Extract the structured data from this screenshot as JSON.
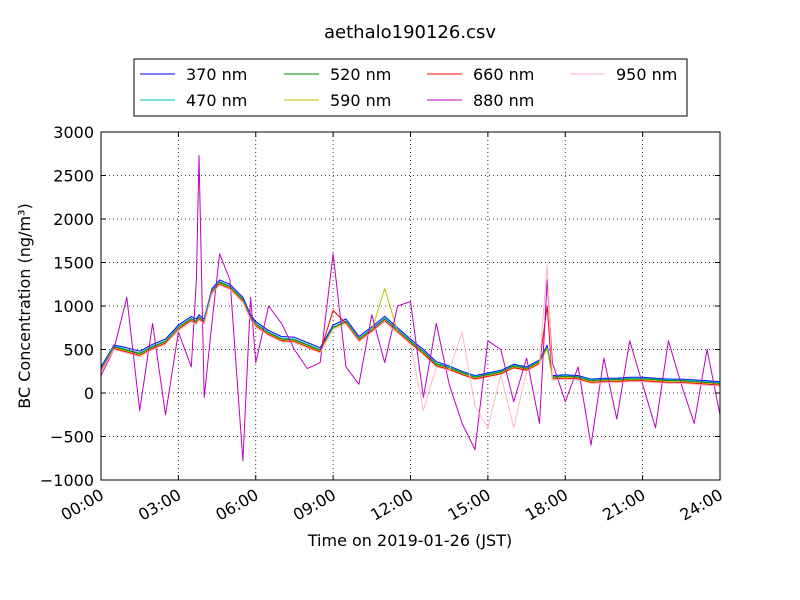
{
  "chart_data": {
    "type": "line",
    "title": "aethalo190126.csv",
    "xlabel": "Time on 2019-01-26 (JST)",
    "ylabel": "BC Concentration (ng/m³)",
    "xlim": [
      0,
      24
    ],
    "ylim": [
      -1000,
      3000
    ],
    "grid": true,
    "legend_position": "top",
    "x_ticks": [
      {
        "value": 0,
        "label": "00:00"
      },
      {
        "value": 3,
        "label": "03:00"
      },
      {
        "value": 6,
        "label": "06:00"
      },
      {
        "value": 9,
        "label": "09:00"
      },
      {
        "value": 12,
        "label": "12:00"
      },
      {
        "value": 15,
        "label": "15:00"
      },
      {
        "value": 18,
        "label": "18:00"
      },
      {
        "value": 21,
        "label": "21:00"
      },
      {
        "value": 24,
        "label": "24:00"
      }
    ],
    "y_ticks": [
      {
        "value": 3000,
        "label": "3000"
      },
      {
        "value": 2500,
        "label": "2500"
      },
      {
        "value": 2000,
        "label": "2000"
      },
      {
        "value": 1500,
        "label": "1500"
      },
      {
        "value": 1000,
        "label": "1000"
      },
      {
        "value": 500,
        "label": "500"
      },
      {
        "value": 0,
        "label": "0"
      },
      {
        "value": -500,
        "label": "−500"
      },
      {
        "value": -1000,
        "label": "−1000"
      }
    ],
    "x": [
      0,
      0.5,
      1,
      1.5,
      2,
      2.5,
      3,
      3.5,
      3.7,
      3.8,
      4,
      4.3,
      4.6,
      5,
      5.5,
      5.8,
      6,
      6.5,
      7,
      7.5,
      8,
      8.5,
      9,
      9.5,
      10,
      10.5,
      11,
      11.5,
      12,
      12.5,
      13,
      13.5,
      14,
      14.5,
      15,
      15.5,
      16,
      16.5,
      17,
      17.3,
      17.5,
      18,
      18.5,
      19,
      19.5,
      20,
      20.5,
      21,
      21.5,
      22,
      22.5,
      23,
      23.5,
      24
    ],
    "series": [
      {
        "name": "370 nm",
        "color": "#0000ff",
        "values": [
          300,
          550,
          520,
          480,
          560,
          620,
          780,
          880,
          850,
          900,
          850,
          1200,
          1300,
          1250,
          1100,
          900,
          820,
          720,
          650,
          640,
          580,
          520,
          780,
          850,
          650,
          760,
          880,
          750,
          620,
          500,
          360,
          310,
          250,
          200,
          230,
          260,
          330,
          300,
          380,
          550,
          200,
          210,
          200,
          160,
          170,
          170,
          180,
          180,
          170,
          160,
          160,
          150,
          140,
          130
        ]
      },
      {
        "name": "470 nm",
        "color": "#00bfbf",
        "values": [
          280,
          540,
          500,
          460,
          540,
          600,
          760,
          860,
          830,
          880,
          830,
          1180,
          1280,
          1230,
          1080,
          880,
          800,
          700,
          630,
          620,
          560,
          500,
          760,
          830,
          630,
          740,
          860,
          730,
          600,
          480,
          340,
          300,
          240,
          190,
          220,
          250,
          320,
          290,
          370,
          530,
          190,
          200,
          190,
          150,
          160,
          160,
          170,
          170,
          160,
          150,
          150,
          140,
          130,
          120
        ]
      },
      {
        "name": "520 nm",
        "color": "#008000",
        "values": [
          270,
          530,
          490,
          450,
          530,
          590,
          750,
          850,
          820,
          870,
          820,
          1170,
          1270,
          1220,
          1070,
          870,
          790,
          690,
          620,
          610,
          550,
          490,
          750,
          820,
          620,
          730,
          850,
          720,
          590,
          470,
          330,
          290,
          230,
          180,
          210,
          240,
          310,
          280,
          360,
          520,
          180,
          190,
          180,
          140,
          150,
          150,
          160,
          160,
          150,
          140,
          140,
          130,
          120,
          110
        ]
      },
      {
        "name": "590 nm",
        "color": "#bfbf00",
        "values": [
          260,
          520,
          480,
          440,
          520,
          580,
          740,
          840,
          810,
          860,
          810,
          1160,
          1260,
          1210,
          1060,
          860,
          780,
          680,
          610,
          600,
          540,
          480,
          740,
          810,
          610,
          720,
          1200,
          710,
          580,
          460,
          320,
          280,
          220,
          170,
          200,
          230,
          300,
          270,
          350,
          510,
          170,
          180,
          170,
          130,
          140,
          140,
          150,
          150,
          140,
          130,
          130,
          120,
          110,
          100
        ]
      },
      {
        "name": "660 nm",
        "color": "#ff0000",
        "values": [
          250,
          510,
          470,
          430,
          510,
          570,
          730,
          830,
          800,
          850,
          800,
          1150,
          1250,
          1200,
          1050,
          850,
          770,
          670,
          600,
          590,
          530,
          470,
          950,
          800,
          600,
          710,
          830,
          700,
          570,
          450,
          310,
          270,
          210,
          160,
          190,
          220,
          290,
          260,
          340,
          1000,
          160,
          170,
          160,
          120,
          130,
          130,
          140,
          140,
          130,
          120,
          120,
          110,
          100,
          90
        ]
      },
      {
        "name": "880 nm",
        "color": "#bf00bf",
        "values": [
          200,
          500,
          1100,
          -200,
          800,
          -250,
          700,
          300,
          1300,
          2730,
          -50,
          800,
          1600,
          1300,
          -780,
          1100,
          350,
          1000,
          800,
          500,
          280,
          350,
          1600,
          300,
          100,
          900,
          350,
          1000,
          1050,
          -50,
          800,
          100,
          -350,
          -650,
          600,
          500,
          -100,
          400,
          -350,
          1300,
          350,
          -100,
          300,
          -600,
          400,
          -300,
          600,
          100,
          -400,
          600,
          100,
          -350,
          500,
          -250
        ]
      },
      {
        "name": "950 nm",
        "color": "#ffb6c1",
        "values": [
          240,
          500,
          460,
          420,
          500,
          560,
          720,
          820,
          790,
          840,
          790,
          1140,
          1240,
          1190,
          1040,
          840,
          760,
          660,
          590,
          580,
          520,
          460,
          730,
          790,
          590,
          700,
          820,
          690,
          560,
          -200,
          300,
          260,
          700,
          -150,
          -400,
          210,
          -400,
          250,
          330,
          1480,
          150,
          160,
          150,
          110,
          120,
          120,
          130,
          130,
          120,
          110,
          110,
          100,
          90,
          80
        ]
      }
    ]
  }
}
